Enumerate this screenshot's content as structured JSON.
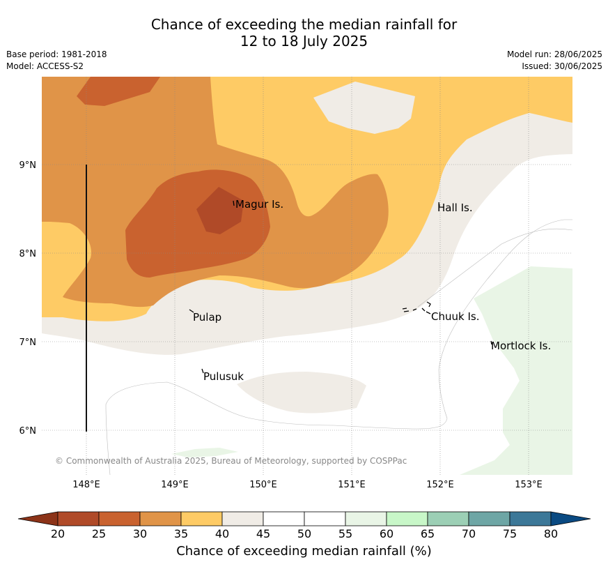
{
  "title": {
    "line1": "Chance of exceeding the median rainfall for",
    "line2": "12 to 18 July 2025"
  },
  "meta": {
    "base_period": "Base period: 1981-2018",
    "model": "Model: ACCESS-S2",
    "model_run": "Model run: 28/06/2025",
    "issued": "Issued: 30/06/2025"
  },
  "map": {
    "lon_ticks": [
      "148°E",
      "149°E",
      "150°E",
      "151°E",
      "152°E",
      "153°E"
    ],
    "lat_ticks": [
      "9°N",
      "8°N",
      "7°N",
      "6°N"
    ],
    "places": [
      "Magur Is.",
      "Hall Is.",
      "Pulap",
      "Chuuk Is.",
      "Mortlock Is.",
      "Pulusuk"
    ],
    "copyright": "© Commonwealth of Australia 2025, Bureau of Meteorology, supported by COSPPac",
    "category_colors": {
      "20-25": "#b04a28",
      "25-30": "#c9622f",
      "30-35": "#e09448",
      "35-40": "#fecb65",
      "40-45": "#f0ece6",
      "45-55": "#ffffff",
      "55-60": "#e9f5e6"
    }
  },
  "colorbar": {
    "label": "Chance of exceeding median rainfall (%)",
    "ticks": [
      "20",
      "25",
      "30",
      "35",
      "40",
      "45",
      "50",
      "55",
      "60",
      "65",
      "70",
      "75",
      "80"
    ],
    "colors": [
      "#b04a28",
      "#c9622f",
      "#e09448",
      "#fecb65",
      "#f0ece6",
      "#ffffff",
      "#ffffff",
      "#e9f5e6",
      "#c8f7c8",
      "#9ccfb5",
      "#6ea6a5",
      "#3c7898"
    ],
    "under_color": "#8c3318",
    "over_color": "#0a4a82"
  }
}
